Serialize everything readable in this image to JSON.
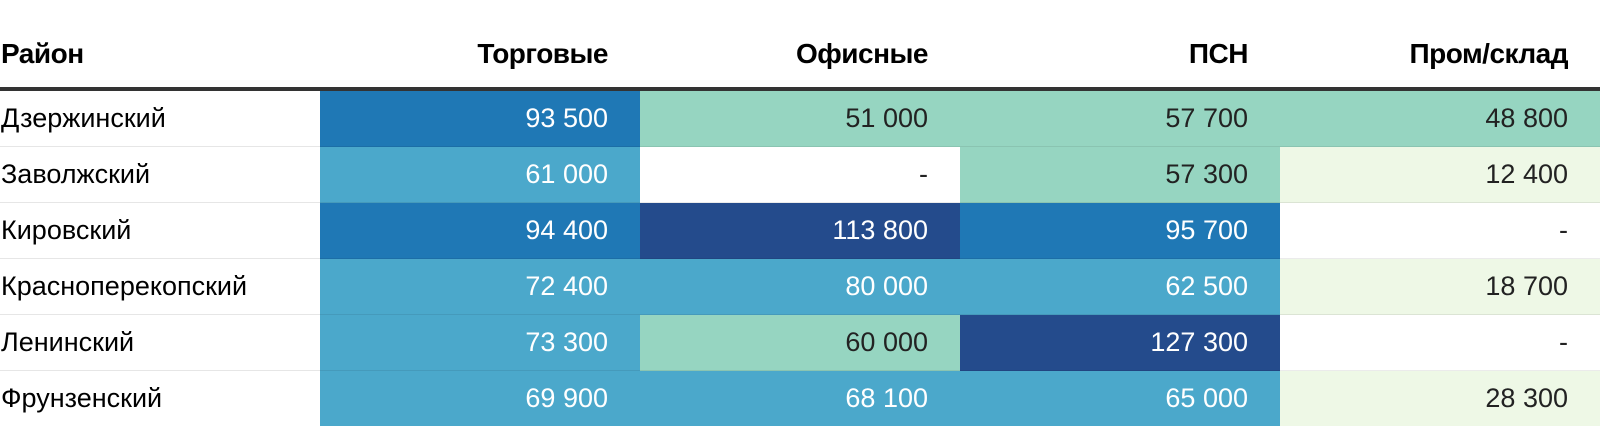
{
  "chart_data": {
    "type": "table",
    "columns": [
      "Район",
      "Торговые",
      "Офисные",
      "ПСН",
      "Пром/склад"
    ],
    "rows": [
      {
        "name": "Дзержинский",
        "values": [
          "93 500",
          "51 000",
          "57 700",
          "48 800"
        ],
        "numeric": [
          93500,
          51000,
          57700,
          48800
        ]
      },
      {
        "name": "Заволжский",
        "values": [
          "61 000",
          "-",
          "57 300",
          "12 400"
        ],
        "numeric": [
          61000,
          null,
          57300,
          12400
        ]
      },
      {
        "name": "Кировский",
        "values": [
          "94 400",
          "113 800",
          "95 700",
          "-"
        ],
        "numeric": [
          94400,
          113800,
          95700,
          null
        ]
      },
      {
        "name": "Красноперекопский",
        "values": [
          "72 400",
          "80 000",
          "62 500",
          "18 700"
        ],
        "numeric": [
          72400,
          80000,
          62500,
          18700
        ]
      },
      {
        "name": "Ленинский",
        "values": [
          "73 300",
          "60 000",
          "127 300",
          "-"
        ],
        "numeric": [
          73300,
          60000,
          127300,
          null
        ]
      },
      {
        "name": "Фрунзенский",
        "values": [
          "69 900",
          "68 100",
          "65 000",
          "28 300"
        ],
        "numeric": [
          69900,
          68100,
          65000,
          28300
        ]
      }
    ],
    "color_scale": [
      {
        "max": 40000,
        "color": "#eef8e6",
        "text": "#222222"
      },
      {
        "max": 60000,
        "color": "#96d5c1",
        "text": "#222222"
      },
      {
        "max": 90000,
        "color": "#4ba8cb",
        "text": "#ffffff"
      },
      {
        "max": 110000,
        "color": "#1f78b5",
        "text": "#ffffff"
      },
      {
        "max": 1000000,
        "color": "#244b8c",
        "text": "#ffffff"
      }
    ],
    "empty_color": "#ffffff"
  }
}
